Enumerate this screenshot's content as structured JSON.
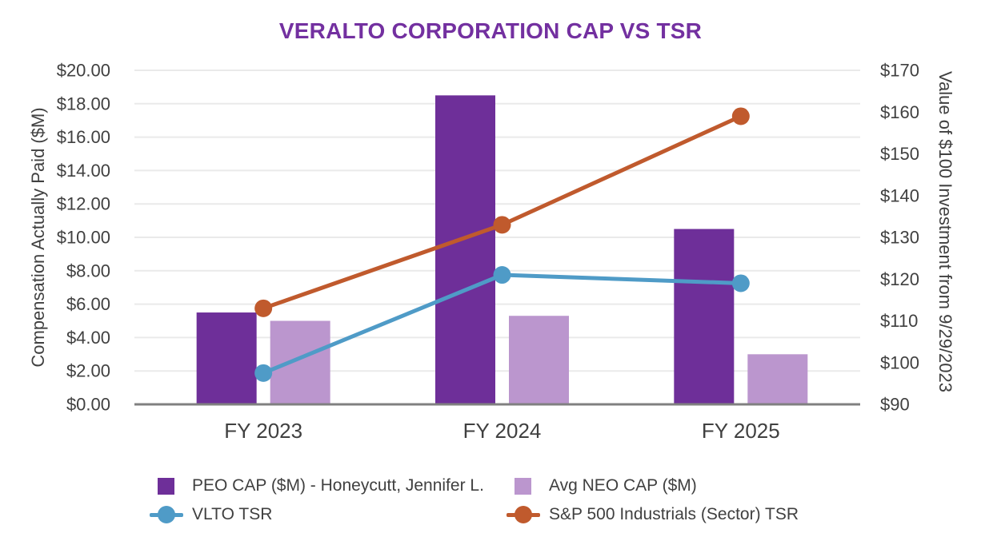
{
  "chart_data": {
    "type": "combo-bar-line",
    "title": "VERALTO CORPORATION CAP VS TSR",
    "categories": [
      "FY 2023",
      "FY 2024",
      "FY 2025"
    ],
    "series": [
      {
        "name": "PEO CAP ($M) - Honeycutt, Jennifer L.",
        "type": "bar",
        "axis": "left",
        "color": "#6E2F99",
        "values": [
          5.5,
          18.5,
          10.5
        ]
      },
      {
        "name": "Avg NEO CAP ($M)",
        "type": "bar",
        "axis": "left",
        "color": "#BB96CE",
        "values": [
          5.0,
          5.3,
          3.0
        ]
      },
      {
        "name": "VLTO TSR",
        "type": "line",
        "axis": "right",
        "color": "#4F9BC7",
        "values": [
          97.5,
          121,
          119
        ]
      },
      {
        "name": "S&P 500 Industrials (Sector) TSR",
        "type": "line",
        "axis": "right",
        "color": "#C05A2D",
        "values": [
          113,
          133,
          159
        ]
      }
    ],
    "left_axis": {
      "title": "Compensation Actually Paid ($M)",
      "min": 0,
      "max": 20,
      "step": 2,
      "tick_prefix": "$",
      "tick_decimals": 2
    },
    "right_axis": {
      "title": "Value of $100 Investment from 9/29/2023",
      "min": 90,
      "max": 170,
      "step": 10,
      "tick_prefix": "$",
      "tick_decimals": 0
    },
    "grid": true,
    "legend_position": "bottom",
    "colors": {
      "title": "#7330A0",
      "text": "#404040",
      "gridline": "#EAEAEA",
      "axis_line": "#808080"
    }
  }
}
